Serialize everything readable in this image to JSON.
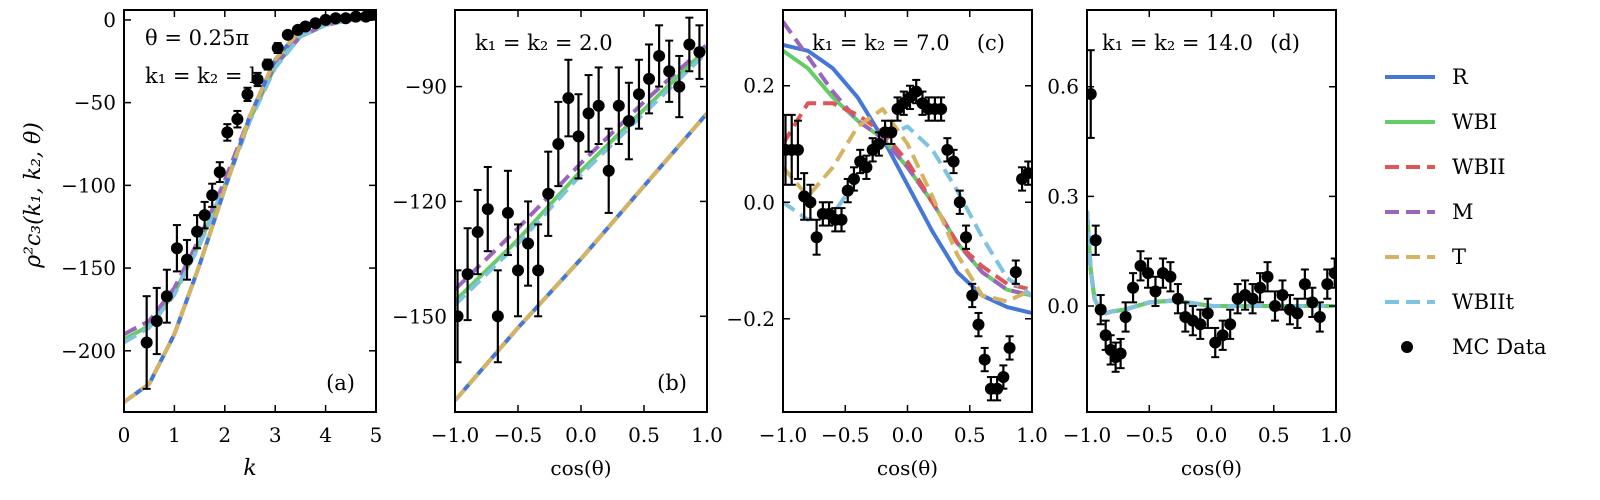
{
  "figure": {
    "ylabel": "ρ²c₃(k₁, k₂, θ)",
    "legend": [
      {
        "label": "R",
        "color": "#4477d6",
        "dash": "solid"
      },
      {
        "label": "WBI",
        "color": "#66cc66",
        "dash": "solid"
      },
      {
        "label": "WBII",
        "color": "#dd5555",
        "dash": "dashed"
      },
      {
        "label": "M",
        "color": "#9966bb",
        "dash": "dashed"
      },
      {
        "label": "T",
        "color": "#d4b463",
        "dash": "dashed"
      },
      {
        "label": "WBIIt",
        "color": "#7ec3e0",
        "dash": "dashed"
      },
      {
        "label": "MC Data",
        "color": "#000000",
        "dash": "marker"
      }
    ]
  },
  "chart_data": [
    {
      "type": "line",
      "panel_label": "(a)",
      "annotation": [
        "θ = 0.25π",
        "k₁ = k₂ = k"
      ],
      "xlabel": "k",
      "xlim": [
        0,
        5
      ],
      "ylim": [
        -237,
        6
      ],
      "xticks": [
        0,
        1,
        2,
        3,
        4,
        5
      ],
      "yticks": [
        0,
        -50,
        -100,
        -150,
        -200
      ],
      "xticklabels": [
        "0",
        "1",
        "2",
        "3",
        "4",
        "5"
      ],
      "yticklabels": [
        "0",
        "−50",
        "−100",
        "−150",
        "−200"
      ],
      "series": [
        {
          "name": "WBI",
          "x": [
            0,
            0.5,
            1.0,
            1.5,
            2.0,
            2.5,
            3.0,
            3.5,
            4.0,
            4.5,
            5.0
          ],
          "y": [
            -193,
            -185,
            -165,
            -135,
            -100,
            -60,
            -28,
            -10,
            -3,
            0,
            1
          ]
        },
        {
          "name": "M",
          "x": [
            0,
            0.5,
            1.0,
            1.5,
            2.0,
            2.5,
            3.0,
            3.5,
            4.0,
            4.5,
            5.0
          ],
          "y": [
            -190,
            -182,
            -162,
            -132,
            -97,
            -58,
            -27,
            -10,
            -3,
            0,
            1
          ]
        },
        {
          "name": "WBIIt",
          "x": [
            0,
            0.5,
            1.0,
            1.5,
            2.0,
            2.5,
            3.0,
            3.5,
            4.0,
            4.5,
            5.0
          ],
          "y": [
            -195,
            -186,
            -166,
            -136,
            -101,
            -61,
            -29,
            -10,
            -3,
            0,
            1
          ]
        },
        {
          "name": "R",
          "x": [
            0,
            0.5,
            1.0,
            1.5,
            2.0,
            2.5,
            3.0,
            3.5,
            4.0,
            4.5,
            5.0
          ],
          "y": [
            -231,
            -220,
            -190,
            -148,
            -102,
            -58,
            -24,
            -6,
            0,
            1,
            1
          ]
        },
        {
          "name": "T",
          "x": [
            0,
            0.5,
            1.0,
            1.5,
            2.0,
            2.5,
            3.0,
            3.5,
            4.0,
            4.5,
            5.0
          ],
          "y": [
            -231,
            -220,
            -190,
            -148,
            -102,
            -58,
            -24,
            -6,
            0,
            1,
            1
          ]
        }
      ],
      "mc": {
        "x": [
          0.45,
          0.65,
          0.85,
          1.05,
          1.25,
          1.45,
          1.6,
          1.75,
          1.9,
          2.05,
          2.25,
          2.45,
          2.65,
          2.85,
          3.05,
          3.25,
          3.45,
          3.6,
          3.8,
          4.0,
          4.2,
          4.4,
          4.6,
          4.8,
          4.9
        ],
        "y": [
          -195,
          -182,
          -167,
          -138,
          -145,
          -128,
          -118,
          -106,
          -92,
          -68,
          -60,
          -45,
          -36,
          -27,
          -17,
          -9,
          -6,
          -4,
          -2,
          0,
          1,
          1,
          2,
          2,
          3
        ],
        "err": [
          28,
          20,
          16,
          14,
          12,
          10,
          8,
          7,
          6,
          5,
          5,
          4,
          4,
          3,
          3,
          2,
          2,
          2,
          2,
          2,
          2,
          2,
          2,
          2,
          2
        ]
      }
    },
    {
      "type": "line",
      "panel_label": "(b)",
      "annotation": [
        "k₁ = k₂ = 2.0"
      ],
      "xlabel": "cos(θ)",
      "xlim": [
        -1,
        1
      ],
      "ylim": [
        -175,
        -70
      ],
      "xticks": [
        -1,
        -0.5,
        0,
        0.5,
        1
      ],
      "yticks": [
        -90,
        -120,
        -150
      ],
      "xticklabels": [
        "−1.0",
        "−0.5",
        "0.0",
        "0.5",
        "1.0"
      ],
      "yticklabels": [
        "−90",
        "−120",
        "−150"
      ],
      "series": [
        {
          "name": "WBI",
          "x": [
            -1,
            -0.5,
            0,
            0.5,
            1
          ],
          "y": [
            -146,
            -130,
            -112,
            -96,
            -80
          ]
        },
        {
          "name": "M",
          "x": [
            -1,
            -0.5,
            0,
            0.5,
            1
          ],
          "y": [
            -143,
            -127,
            -110,
            -94,
            -79
          ]
        },
        {
          "name": "WBIIt",
          "x": [
            -1,
            -0.5,
            0,
            0.5,
            1
          ],
          "y": [
            -147,
            -131,
            -113,
            -97,
            -81
          ]
        },
        {
          "name": "R",
          "x": [
            -1,
            -0.5,
            0,
            0.5,
            1
          ],
          "y": [
            -172,
            -153,
            -135,
            -116,
            -97
          ]
        },
        {
          "name": "T",
          "x": [
            -1,
            -0.5,
            0,
            0.5,
            1
          ],
          "y": [
            -172,
            -153,
            -135,
            -116,
            -97
          ]
        }
      ],
      "mc": {
        "x": [
          -0.98,
          -0.9,
          -0.82,
          -0.74,
          -0.66,
          -0.58,
          -0.5,
          -0.42,
          -0.34,
          -0.26,
          -0.18,
          -0.1,
          -0.02,
          0.06,
          0.14,
          0.22,
          0.3,
          0.38,
          0.46,
          0.54,
          0.62,
          0.7,
          0.78,
          0.86,
          0.94
        ],
        "y": [
          -150,
          -139,
          -128,
          -122,
          -150,
          -123,
          -138,
          -131,
          -138,
          -118,
          -105,
          -93,
          -103,
          -97,
          -95,
          -112,
          -95,
          -99,
          -92,
          -88,
          -82,
          -86,
          -90,
          -79,
          -81
        ],
        "err": [
          12,
          12,
          11,
          11,
          12,
          11,
          12,
          11,
          12,
          11,
          11,
          10,
          11,
          10,
          10,
          11,
          10,
          10,
          9,
          9,
          8,
          8,
          8,
          7,
          7
        ]
      }
    },
    {
      "type": "line",
      "panel_label": "(c)",
      "annotation": [
        "k₁ = k₂ = 7.0"
      ],
      "xlabel": "cos(θ)",
      "xlim": [
        -1,
        1
      ],
      "ylim": [
        -0.36,
        0.33
      ],
      "xticks": [
        -1,
        -0.5,
        0,
        0.5,
        1
      ],
      "yticks": [
        0.2,
        0.0,
        -0.2
      ],
      "xticklabels": [
        "−1.0",
        "−0.5",
        "0.0",
        "0.5",
        "1.0"
      ],
      "yticklabels": [
        "0.2",
        "0.0",
        "−0.2"
      ],
      "series": [
        {
          "name": "R",
          "x": [
            -1,
            -0.8,
            -0.6,
            -0.4,
            -0.2,
            0,
            0.2,
            0.4,
            0.6,
            0.8,
            1
          ],
          "y": [
            0.27,
            0.26,
            0.23,
            0.18,
            0.11,
            0.03,
            -0.05,
            -0.12,
            -0.16,
            -0.18,
            -0.19
          ]
        },
        {
          "name": "WBI",
          "x": [
            -1,
            -0.8,
            -0.6,
            -0.4,
            -0.2,
            0,
            0.2,
            0.4,
            0.6,
            0.8,
            1
          ],
          "y": [
            0.26,
            0.23,
            0.18,
            0.14,
            0.11,
            0.06,
            0.0,
            -0.07,
            -0.12,
            -0.15,
            -0.16
          ]
        },
        {
          "name": "M",
          "x": [
            -1,
            -0.8,
            -0.6,
            -0.4,
            -0.2,
            0,
            0.2,
            0.4,
            0.6,
            0.8,
            1
          ],
          "y": [
            0.31,
            0.25,
            0.19,
            0.14,
            0.11,
            0.06,
            0.0,
            -0.07,
            -0.12,
            -0.15,
            -0.16
          ]
        },
        {
          "name": "WBII",
          "x": [
            -1,
            -0.8,
            -0.6,
            -0.4,
            -0.2,
            0,
            0.2,
            0.4,
            0.6,
            0.8,
            1
          ],
          "y": [
            0.1,
            0.17,
            0.17,
            0.15,
            0.12,
            0.07,
            0.0,
            -0.07,
            -0.11,
            -0.14,
            -0.15
          ]
        },
        {
          "name": "T",
          "x": [
            -1,
            -0.8,
            -0.6,
            -0.4,
            -0.2,
            0,
            0.2,
            0.4,
            0.6,
            0.8,
            1
          ],
          "y": [
            0.06,
            0.01,
            0.06,
            0.13,
            0.16,
            0.1,
            0.01,
            -0.09,
            -0.16,
            -0.17,
            -0.15
          ]
        },
        {
          "name": "WBIIt",
          "x": [
            -1,
            -0.8,
            -0.6,
            -0.4,
            -0.2,
            0,
            0.2,
            0.4,
            0.6,
            0.8,
            1
          ],
          "y": [
            0.0,
            -0.03,
            -0.02,
            0.04,
            0.11,
            0.13,
            0.09,
            0.02,
            -0.06,
            -0.13,
            -0.16
          ]
        }
      ],
      "mc": {
        "x": [
          -0.98,
          -0.93,
          -0.88,
          -0.83,
          -0.78,
          -0.73,
          -0.68,
          -0.63,
          -0.58,
          -0.53,
          -0.48,
          -0.43,
          -0.38,
          -0.33,
          -0.28,
          -0.23,
          -0.18,
          -0.13,
          -0.08,
          -0.03,
          0.02,
          0.07,
          0.12,
          0.17,
          0.22,
          0.27,
          0.32,
          0.37,
          0.42,
          0.47,
          0.52,
          0.57,
          0.62,
          0.67,
          0.72,
          0.77,
          0.82,
          0.87,
          0.92,
          0.97
        ],
        "y": [
          0.09,
          0.09,
          0.09,
          0.01,
          0.0,
          -0.06,
          -0.02,
          -0.02,
          -0.03,
          -0.03,
          0.02,
          0.04,
          0.07,
          0.06,
          0.09,
          0.1,
          0.12,
          0.12,
          0.16,
          0.17,
          0.18,
          0.19,
          0.17,
          0.16,
          0.16,
          0.16,
          0.09,
          0.07,
          0.0,
          -0.06,
          -0.16,
          -0.21,
          -0.27,
          -0.32,
          -0.32,
          -0.3,
          -0.25,
          -0.12,
          0.04,
          0.05
        ],
        "err": [
          0.06,
          0.06,
          0.05,
          0.04,
          0.03,
          0.03,
          0.02,
          0.02,
          0.02,
          0.02,
          0.02,
          0.02,
          0.02,
          0.02,
          0.02,
          0.02,
          0.02,
          0.02,
          0.02,
          0.02,
          0.02,
          0.02,
          0.02,
          0.02,
          0.02,
          0.02,
          0.02,
          0.02,
          0.02,
          0.02,
          0.02,
          0.02,
          0.02,
          0.02,
          0.02,
          0.02,
          0.02,
          0.02,
          0.02,
          0.02
        ]
      }
    },
    {
      "type": "line",
      "panel_label": "(d)",
      "annotation": [
        "k₁ = k₂ = 14.0"
      ],
      "xlabel": "cos(θ)",
      "xlim": [
        -1,
        1
      ],
      "ylim": [
        -0.29,
        0.81
      ],
      "xticks": [
        -1,
        -0.5,
        0,
        0.5,
        1
      ],
      "yticks": [
        0.6,
        0.3,
        0.0
      ],
      "xticklabels": [
        "−1.0",
        "−0.5",
        "0.0",
        "0.5",
        "1.0"
      ],
      "yticklabels": [
        "0.6",
        "0.3",
        "0.0"
      ],
      "series": [
        {
          "name": "R",
          "x": [
            -1,
            -0.97,
            -0.94,
            -0.9,
            -0.85,
            -0.8,
            -0.7,
            -0.5,
            -0.3,
            0,
            0.5,
            1
          ],
          "y": [
            0.26,
            0.1,
            0.02,
            -0.01,
            -0.02,
            -0.015,
            -0.01,
            0.01,
            0.015,
            0.0,
            0.0,
            0.0
          ]
        },
        {
          "name": "WBI",
          "x": [
            -1,
            -0.97,
            -0.94,
            -0.9,
            -0.85,
            -0.8,
            -0.7,
            -0.5,
            -0.3,
            0,
            0.5,
            1
          ],
          "y": [
            0.26,
            0.1,
            0.02,
            -0.01,
            -0.02,
            -0.015,
            -0.01,
            0.01,
            0.015,
            0.0,
            0.0,
            0.0
          ]
        },
        {
          "name": "WBII",
          "x": [
            -1,
            -0.97,
            -0.94,
            -0.9,
            -0.85,
            -0.8,
            -0.7,
            -0.5,
            -0.3,
            0,
            0.5,
            1
          ],
          "y": [
            0.26,
            0.1,
            0.02,
            -0.01,
            -0.02,
            -0.015,
            -0.01,
            0.01,
            0.015,
            0.0,
            0.0,
            0.0
          ]
        },
        {
          "name": "M",
          "x": [
            -1,
            -0.97,
            -0.94,
            -0.9,
            -0.85,
            -0.8,
            -0.7,
            -0.5,
            -0.3,
            0,
            0.5,
            1
          ],
          "y": [
            0.26,
            0.1,
            0.02,
            -0.01,
            -0.02,
            -0.015,
            -0.01,
            0.01,
            0.015,
            0.0,
            0.0,
            0.0
          ]
        },
        {
          "name": "T",
          "x": [
            -1,
            -0.97,
            -0.94,
            -0.9,
            -0.85,
            -0.8,
            -0.7,
            -0.5,
            -0.3,
            0,
            0.5,
            1
          ],
          "y": [
            0.26,
            0.1,
            0.02,
            -0.01,
            -0.02,
            -0.015,
            -0.01,
            0.01,
            0.015,
            0.0,
            0.0,
            0.0
          ]
        },
        {
          "name": "WBIIt",
          "x": [
            -1,
            -0.97,
            -0.94,
            -0.9,
            -0.85,
            -0.8,
            -0.7,
            -0.5,
            -0.3,
            0,
            0.5,
            1
          ],
          "y": [
            0.26,
            0.1,
            0.02,
            -0.01,
            -0.02,
            -0.015,
            -0.01,
            0.01,
            0.015,
            0.0,
            0.0,
            0.0
          ]
        }
      ],
      "mc": {
        "x": [
          -0.97,
          -0.93,
          -0.89,
          -0.85,
          -0.81,
          -0.77,
          -0.73,
          -0.69,
          -0.63,
          -0.57,
          -0.51,
          -0.45,
          -0.39,
          -0.33,
          -0.27,
          -0.21,
          -0.15,
          -0.09,
          -0.03,
          0.03,
          0.09,
          0.15,
          0.21,
          0.27,
          0.33,
          0.39,
          0.45,
          0.51,
          0.57,
          0.63,
          0.69,
          0.75,
          0.81,
          0.87,
          0.93,
          0.99
        ],
        "y": [
          0.58,
          0.18,
          -0.01,
          -0.08,
          -0.12,
          -0.14,
          -0.13,
          -0.03,
          0.05,
          0.11,
          0.09,
          0.04,
          0.09,
          0.08,
          0.02,
          -0.03,
          -0.04,
          -0.05,
          -0.02,
          -0.1,
          -0.08,
          -0.05,
          0.02,
          0.03,
          0.02,
          0.05,
          0.08,
          0.0,
          0.03,
          -0.01,
          -0.02,
          0.06,
          0.01,
          -0.03,
          0.06,
          0.09
        ],
        "err": [
          0.12,
          0.04,
          0.04,
          0.04,
          0.04,
          0.04,
          0.04,
          0.04,
          0.04,
          0.04,
          0.04,
          0.04,
          0.04,
          0.04,
          0.04,
          0.04,
          0.04,
          0.04,
          0.04,
          0.04,
          0.04,
          0.04,
          0.04,
          0.04,
          0.04,
          0.04,
          0.04,
          0.04,
          0.04,
          0.04,
          0.04,
          0.04,
          0.04,
          0.04,
          0.04,
          0.04
        ]
      }
    }
  ]
}
